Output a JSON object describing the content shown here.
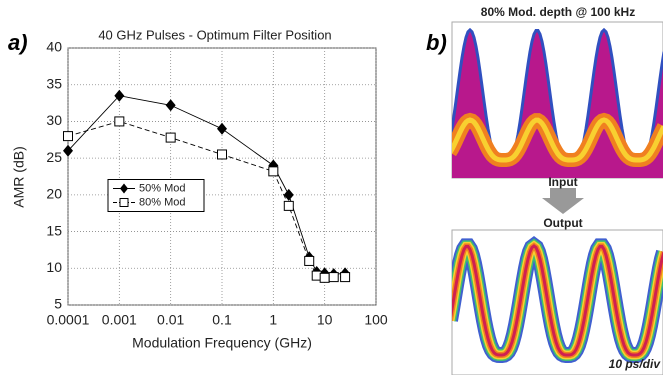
{
  "chart_data": {
    "type": "line",
    "title": "40 GHz Pulses - Optimum Filter Position",
    "x_label": "Modulation Frequency (GHz)",
    "y_label": "AMR (dB)",
    "xscale": "log",
    "grid": true,
    "legend": "center-left",
    "x": [
      0.0001,
      0.001,
      0.01,
      0.1,
      1,
      2,
      5,
      7,
      10,
      15,
      25
    ],
    "series": [
      {
        "name": "50% Mod",
        "color": "#000000",
        "marker": "diamond",
        "line_style": "solid",
        "values": [
          26,
          33.5,
          32.2,
          29,
          24,
          20,
          11.5,
          9.5,
          9.3,
          9.2,
          9.3
        ]
      },
      {
        "name": "80% Mod",
        "color": "#000000",
        "marker": "square",
        "line_style": "dashed",
        "values": [
          28,
          30,
          27.8,
          25.5,
          23.2,
          18.5,
          11,
          9,
          8.7,
          8.8,
          8.8
        ]
      }
    ],
    "xlim": [
      0.0001,
      100
    ],
    "xticks": [
      0.0001,
      0.001,
      0.01,
      0.1,
      1,
      10,
      100
    ],
    "ylim": [
      5,
      40
    ],
    "yticks": [
      5,
      10,
      15,
      20,
      25,
      30,
      35,
      40
    ]
  },
  "panel_a": {
    "label": "a)"
  },
  "panel_b": {
    "label": "b)",
    "title": "80% Mod. depth @ 100 kHz",
    "input": "Input",
    "output": "Output",
    "scale": "10 ps/div"
  }
}
